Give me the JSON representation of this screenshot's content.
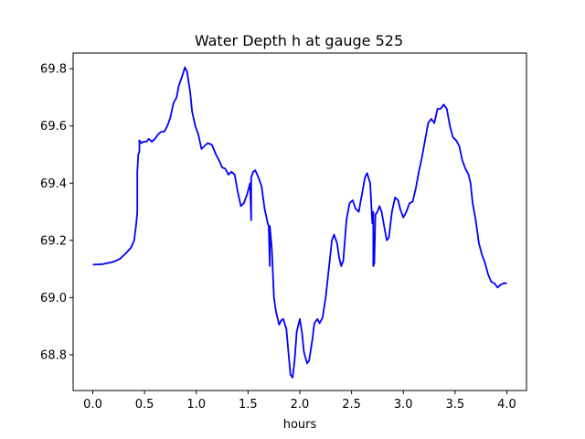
{
  "chart_data": {
    "type": "line",
    "title": "Water Depth h at gauge 525",
    "xlabel": "hours",
    "ylabel": "",
    "xlim": [
      -0.19,
      4.19
    ],
    "ylim": [
      68.675,
      69.855
    ],
    "xticks": [
      0.0,
      0.5,
      1.0,
      1.5,
      2.0,
      2.5,
      3.0,
      3.5,
      4.0
    ],
    "xtick_labels": [
      "0.0",
      "0.5",
      "1.0",
      "1.5",
      "2.0",
      "2.5",
      "3.0",
      "3.5",
      "4.0"
    ],
    "yticks": [
      68.8,
      69.0,
      69.2,
      69.4,
      69.6,
      69.8
    ],
    "ytick_labels": [
      "68.8",
      "69.0",
      "69.2",
      "69.4",
      "69.6",
      "69.8"
    ],
    "grid": false,
    "series": [
      {
        "color": "#0000ff",
        "points": [
          [
            0.0,
            69.115
          ],
          [
            0.1,
            69.117
          ],
          [
            0.2,
            69.125
          ],
          [
            0.26,
            69.135
          ],
          [
            0.32,
            69.155
          ],
          [
            0.37,
            69.175
          ],
          [
            0.4,
            69.2
          ],
          [
            0.42,
            69.26
          ],
          [
            0.43,
            69.3
          ],
          [
            0.43,
            69.44
          ],
          [
            0.44,
            69.5
          ],
          [
            0.45,
            69.51
          ],
          [
            0.45,
            69.55
          ],
          [
            0.47,
            69.54
          ],
          [
            0.49,
            69.545
          ],
          [
            0.52,
            69.545
          ],
          [
            0.54,
            69.555
          ],
          [
            0.57,
            69.545
          ],
          [
            0.6,
            69.555
          ],
          [
            0.63,
            69.57
          ],
          [
            0.66,
            69.58
          ],
          [
            0.69,
            69.58
          ],
          [
            0.72,
            69.6
          ],
          [
            0.75,
            69.63
          ],
          [
            0.78,
            69.68
          ],
          [
            0.81,
            69.7
          ],
          [
            0.83,
            69.74
          ],
          [
            0.86,
            69.77
          ],
          [
            0.89,
            69.805
          ],
          [
            0.91,
            69.79
          ],
          [
            0.94,
            69.72
          ],
          [
            0.96,
            69.65
          ],
          [
            0.99,
            69.6
          ],
          [
            1.02,
            69.57
          ],
          [
            1.05,
            69.52
          ],
          [
            1.08,
            69.53
          ],
          [
            1.11,
            69.54
          ],
          [
            1.15,
            69.535
          ],
          [
            1.19,
            69.5
          ],
          [
            1.22,
            69.48
          ],
          [
            1.25,
            69.455
          ],
          [
            1.28,
            69.45
          ],
          [
            1.31,
            69.43
          ],
          [
            1.34,
            69.44
          ],
          [
            1.37,
            69.43
          ],
          [
            1.4,
            69.37
          ],
          [
            1.43,
            69.32
          ],
          [
            1.46,
            69.33
          ],
          [
            1.49,
            69.36
          ],
          [
            1.52,
            69.4
          ],
          [
            1.53,
            69.27
          ],
          [
            1.53,
            69.42
          ],
          [
            1.55,
            69.44
          ],
          [
            1.57,
            69.445
          ],
          [
            1.6,
            69.42
          ],
          [
            1.63,
            69.39
          ],
          [
            1.66,
            69.31
          ],
          [
            1.69,
            69.26
          ],
          [
            1.7,
            69.25
          ],
          [
            1.71,
            69.11
          ],
          [
            1.71,
            69.25
          ],
          [
            1.73,
            69.17
          ],
          [
            1.75,
            69.0
          ],
          [
            1.77,
            68.95
          ],
          [
            1.8,
            68.905
          ],
          [
            1.82,
            68.92
          ],
          [
            1.84,
            68.925
          ],
          [
            1.87,
            68.89
          ],
          [
            1.89,
            68.81
          ],
          [
            1.91,
            68.73
          ],
          [
            1.93,
            68.72
          ],
          [
            1.95,
            68.78
          ],
          [
            1.97,
            68.88
          ],
          [
            2.0,
            68.925
          ],
          [
            2.02,
            68.88
          ],
          [
            2.04,
            68.81
          ],
          [
            2.07,
            68.77
          ],
          [
            2.09,
            68.78
          ],
          [
            2.12,
            68.85
          ],
          [
            2.14,
            68.91
          ],
          [
            2.17,
            68.925
          ],
          [
            2.19,
            68.91
          ],
          [
            2.22,
            68.93
          ],
          [
            2.25,
            69.0
          ],
          [
            2.28,
            69.1
          ],
          [
            2.31,
            69.2
          ],
          [
            2.33,
            69.22
          ],
          [
            2.36,
            69.19
          ],
          [
            2.38,
            69.14
          ],
          [
            2.4,
            69.11
          ],
          [
            2.42,
            69.13
          ],
          [
            2.45,
            69.27
          ],
          [
            2.48,
            69.33
          ],
          [
            2.51,
            69.34
          ],
          [
            2.54,
            69.31
          ],
          [
            2.57,
            69.3
          ],
          [
            2.6,
            69.36
          ],
          [
            2.63,
            69.42
          ],
          [
            2.65,
            69.435
          ],
          [
            2.68,
            69.4
          ],
          [
            2.7,
            69.26
          ],
          [
            2.71,
            69.3
          ],
          [
            2.71,
            69.11
          ],
          [
            2.72,
            69.12
          ],
          [
            2.73,
            69.29
          ],
          [
            2.75,
            69.3
          ],
          [
            2.77,
            69.32
          ],
          [
            2.79,
            69.3
          ],
          [
            2.81,
            69.26
          ],
          [
            2.84,
            69.2
          ],
          [
            2.86,
            69.21
          ],
          [
            2.89,
            69.3
          ],
          [
            2.92,
            69.35
          ],
          [
            2.95,
            69.34
          ],
          [
            2.97,
            69.31
          ],
          [
            3.0,
            69.28
          ],
          [
            3.03,
            69.3
          ],
          [
            3.06,
            69.33
          ],
          [
            3.09,
            69.335
          ],
          [
            3.12,
            69.38
          ],
          [
            3.15,
            69.44
          ],
          [
            3.18,
            69.49
          ],
          [
            3.21,
            69.55
          ],
          [
            3.24,
            69.61
          ],
          [
            3.27,
            69.625
          ],
          [
            3.3,
            69.61
          ],
          [
            3.33,
            69.66
          ],
          [
            3.36,
            69.66
          ],
          [
            3.39,
            69.675
          ],
          [
            3.42,
            69.66
          ],
          [
            3.45,
            69.6
          ],
          [
            3.48,
            69.56
          ],
          [
            3.51,
            69.55
          ],
          [
            3.54,
            69.53
          ],
          [
            3.57,
            69.48
          ],
          [
            3.6,
            69.45
          ],
          [
            3.63,
            69.43
          ],
          [
            3.65,
            69.4
          ],
          [
            3.67,
            69.33
          ],
          [
            3.7,
            69.27
          ],
          [
            3.73,
            69.19
          ],
          [
            3.76,
            69.15
          ],
          [
            3.79,
            69.12
          ],
          [
            3.82,
            69.08
          ],
          [
            3.85,
            69.055
          ],
          [
            3.88,
            69.05
          ],
          [
            3.91,
            69.035
          ],
          [
            3.94,
            69.045
          ],
          [
            3.97,
            69.05
          ],
          [
            4.0,
            69.05
          ]
        ]
      }
    ]
  }
}
